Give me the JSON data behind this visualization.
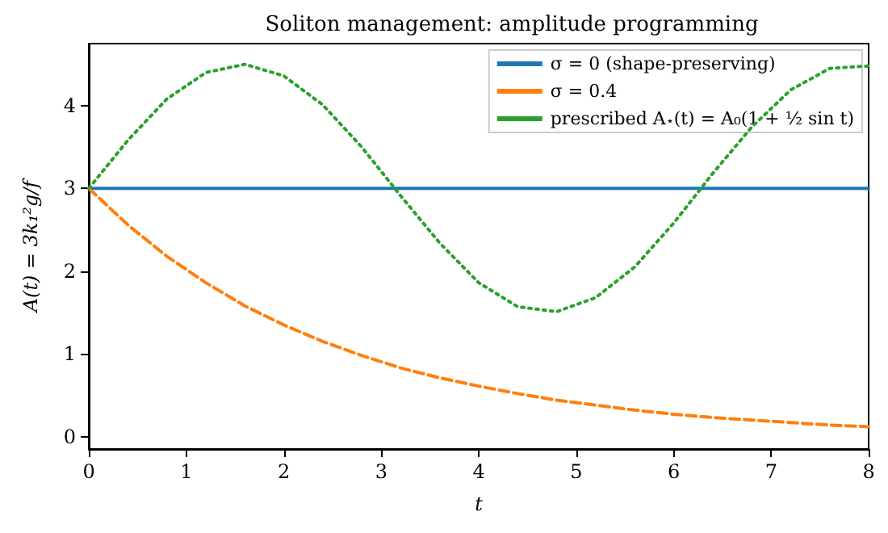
{
  "chart_data": {
    "type": "line",
    "title": "Soliton management: amplitude programming",
    "xlabel": "t",
    "ylabel": "A(t) = 3k₁²g/f",
    "x": [
      0,
      0.4,
      0.8,
      1.2,
      1.6,
      2.0,
      2.4,
      2.8,
      3.2,
      3.6,
      4.0,
      4.4,
      4.8,
      5.2,
      5.6,
      6.0,
      6.4,
      6.8,
      7.2,
      7.6,
      8.0
    ],
    "series": [
      {
        "name": "σ = 0 (shape-preserving)",
        "color": "#1f77b4",
        "line_style": "solid",
        "values": [
          3,
          3,
          3,
          3,
          3,
          3,
          3,
          3,
          3,
          3,
          3,
          3,
          3,
          3,
          3,
          3,
          3,
          3,
          3,
          3,
          3
        ]
      },
      {
        "name": "σ = 0.4",
        "color": "#ff7f0e",
        "line_style": "dashed",
        "values": [
          3,
          2.56,
          2.18,
          1.86,
          1.58,
          1.35,
          1.15,
          0.98,
          0.83,
          0.71,
          0.61,
          0.52,
          0.44,
          0.38,
          0.32,
          0.27,
          0.23,
          0.2,
          0.17,
          0.14,
          0.12
        ]
      },
      {
        "name": "prescribed A$_{⋆}$(t) = A₀(1 + ½ sin t)",
        "color": "#2ca02c",
        "line_style": "dotted",
        "values": [
          3,
          3.58,
          4.08,
          4.4,
          4.5,
          4.36,
          4.01,
          3.5,
          2.91,
          2.34,
          1.86,
          1.57,
          1.51,
          1.68,
          2.05,
          2.58,
          3.18,
          3.74,
          4.19,
          4.45,
          4.48
        ]
      }
    ],
    "xlim": [
      0,
      8
    ],
    "xticks": [
      0,
      1,
      2,
      3,
      4,
      5,
      6,
      7,
      8
    ],
    "ylim": [
      -0.15,
      4.75
    ],
    "yticks": [
      0,
      1,
      2,
      3,
      4
    ],
    "grid": false,
    "legend": "top right",
    "marker": "none"
  }
}
